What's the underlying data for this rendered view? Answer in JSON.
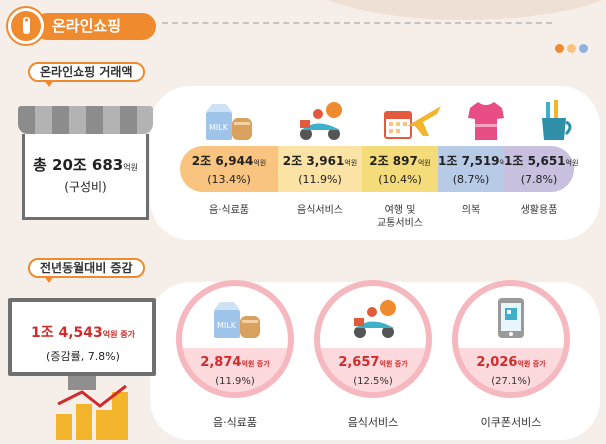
{
  "header": {
    "title": "온라인쇼핑"
  },
  "colors": {
    "accent": "#f08a2e",
    "highlight_red": "#d12b2b",
    "circle_border": "#f6b8bf"
  },
  "top_section": {
    "label": "온라인쇼핑 거래액",
    "total_prefix": "총 20조 683",
    "total_unit": "억원",
    "total_sub": "(구성비)",
    "categories": [
      {
        "amount": "2조 6,944",
        "unit": "억원",
        "share": "(13.4%)",
        "name": "음·식료품",
        "icon": "milk-bread-icon",
        "color": "#f9c47f"
      },
      {
        "amount": "2조 3,961",
        "unit": "억원",
        "share": "(11.9%)",
        "name": "음식서비스",
        "icon": "delivery-scooter-icon",
        "color": "#fbe3a6"
      },
      {
        "amount": "2조 897",
        "unit": "억원",
        "share": "(10.4%)",
        "name": "여행 및",
        "name2": "교통서비스",
        "icon": "airplane-calendar-icon",
        "color": "#f5dc7a"
      },
      {
        "amount": "1조 7,519",
        "unit": "억원",
        "share": "(8.7%)",
        "name": "의복",
        "icon": "tshirt-icon",
        "color": "#b7cbe6"
      },
      {
        "amount": "1조 5,651",
        "unit": "억원",
        "share": "(7.8%)",
        "name": "생활용품",
        "icon": "cup-brush-icon",
        "color": "#c9c0e0"
      }
    ]
  },
  "bottom_section": {
    "label": "전년동월대비 증감",
    "total_amount": "1조 4,543",
    "total_unit": "억원 증가",
    "total_sub": "(증감률, 7.8%)",
    "items": [
      {
        "amount": "2,874",
        "unit": "억원 증가",
        "rate": "(11.9%)",
        "name": "음·식료품",
        "icon": "milk-bread-icon"
      },
      {
        "amount": "2,657",
        "unit": "억원 증가",
        "rate": "(12.5%)",
        "name": "음식서비스",
        "icon": "delivery-scooter-icon"
      },
      {
        "amount": "2,026",
        "unit": "억원 증가",
        "rate": "(27.1%)",
        "name": "이쿠폰서비스",
        "icon": "smartphone-qr-icon"
      }
    ]
  }
}
